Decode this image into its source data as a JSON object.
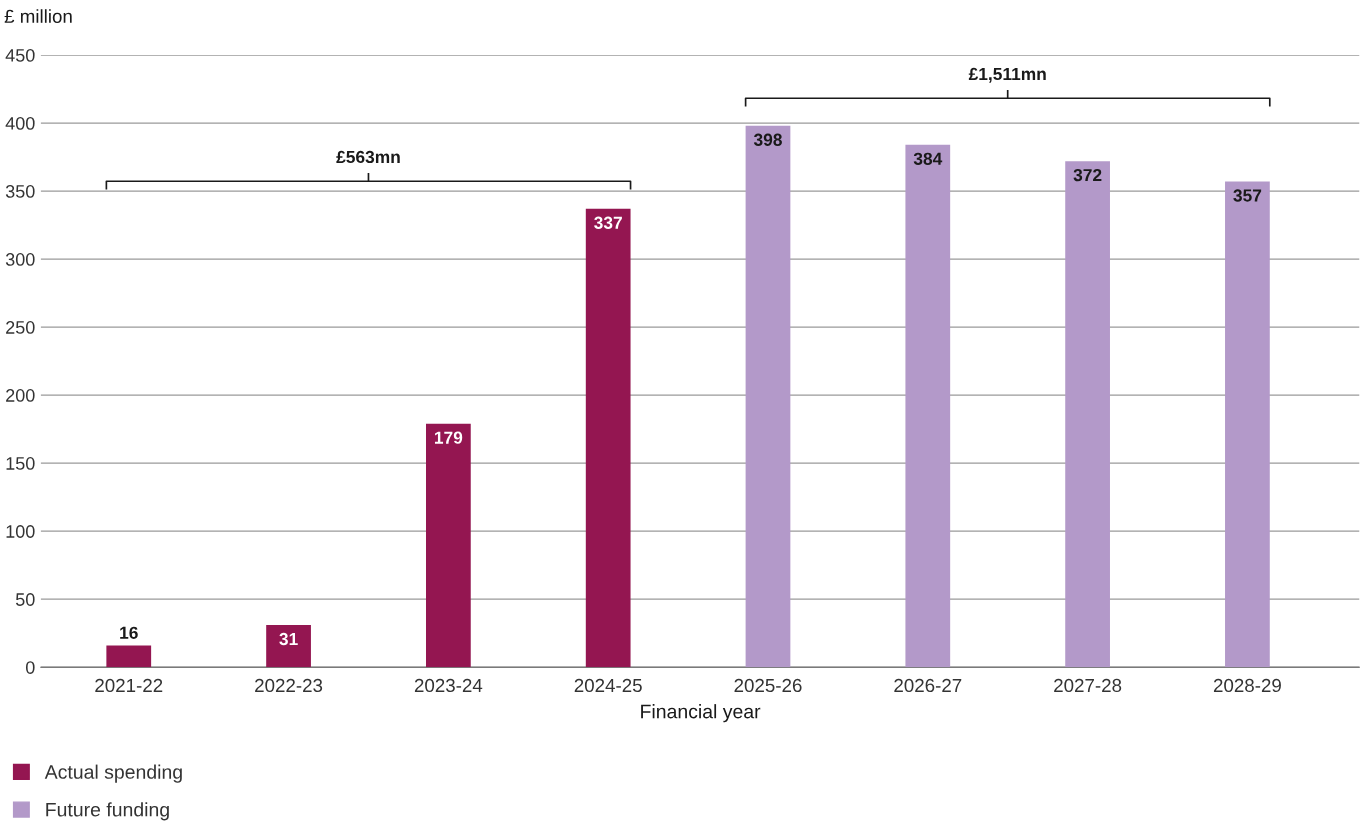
{
  "chart_data": {
    "type": "bar",
    "ylabel": "£ million",
    "xlabel": "Financial year",
    "categories": [
      "2021-22",
      "2022-23",
      "2023-24",
      "2024-25",
      "2025-26",
      "2026-27",
      "2027-28",
      "2028-29"
    ],
    "series": [
      {
        "name": "Actual spending",
        "color": "#941651",
        "values": [
          16,
          31,
          179,
          337,
          null,
          null,
          null,
          null
        ]
      },
      {
        "name": "Future funding",
        "color": "#b399c9",
        "values": [
          null,
          null,
          null,
          null,
          398,
          384,
          372,
          357
        ]
      }
    ],
    "ylim": [
      0,
      450
    ],
    "yticks": [
      0,
      50,
      100,
      150,
      200,
      250,
      300,
      350,
      400,
      450
    ],
    "grid": "y",
    "legend": "bottom left",
    "data_labels": true,
    "annotations": [
      "£563mn",
      "£1,511mn"
    ]
  }
}
